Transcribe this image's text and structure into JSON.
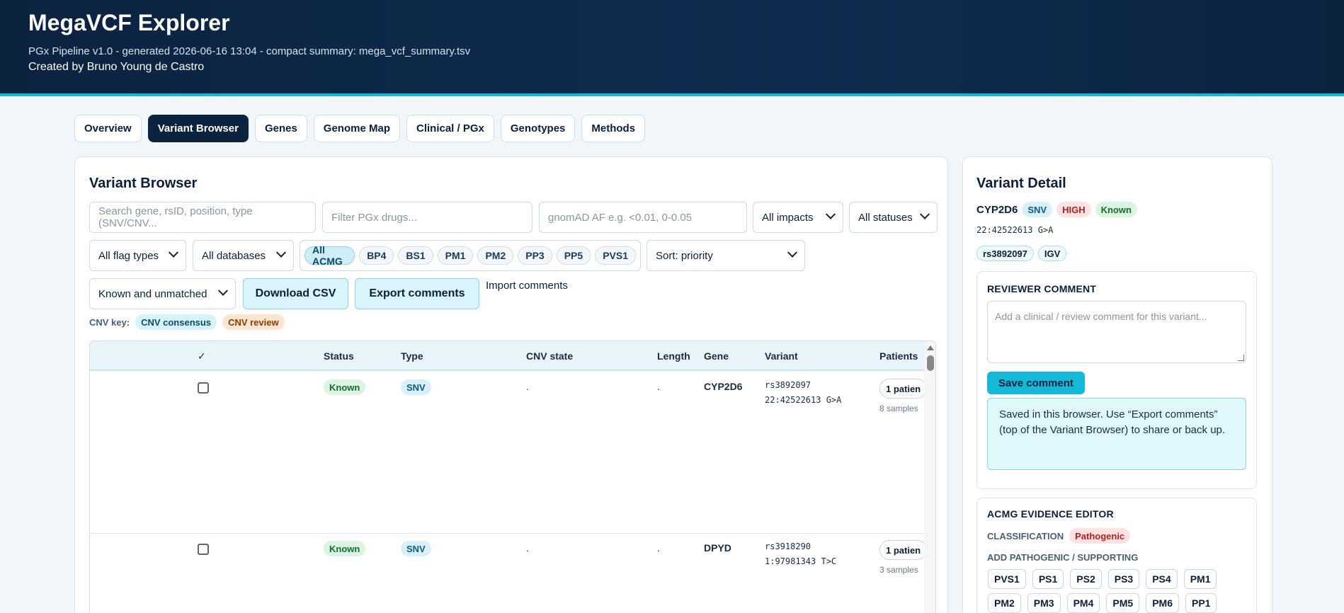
{
  "header": {
    "title": "MegaVCF Explorer",
    "subtitle": "PGx Pipeline v1.0 - generated 2026-06-16 13:04 - compact summary: mega_vcf_summary.tsv",
    "credit": "Created by Bruno Young de Castro"
  },
  "tabs": [
    "Overview",
    "Variant Browser",
    "Genes",
    "Genome Map",
    "Clinical / PGx",
    "Genotypes",
    "Methods"
  ],
  "browser": {
    "title": "Variant Browser",
    "search_placeholder": "Search gene, rsID, position, type (SNV/CNV...",
    "drug_placeholder": "Filter PGx drugs...",
    "af_placeholder": "gnomAD AF e.g. <0.01, 0-0.05",
    "impacts": "All impacts",
    "statuses": "All statuses",
    "flag_types": "All flag types",
    "databases": "All databases",
    "acmg_chips": [
      "All ACMG",
      "BP4",
      "BS1",
      "PM1",
      "PM2",
      "PP3",
      "PP5",
      "PVS1"
    ],
    "sort": "Sort: priority",
    "match": "Known and unmatched",
    "download_csv": "Download CSV",
    "export_comments": "Export comments",
    "import_comments": "Import comments",
    "cnv_key_label": "CNV key:",
    "cnv_consensus": "CNV consensus",
    "cnv_review": "CNV review",
    "columns": [
      "✓",
      "Status",
      "Type",
      "CNV state",
      "Length",
      "Gene",
      "Variant",
      "Patients"
    ],
    "rows": [
      {
        "status": "Known",
        "type": "SNV",
        "cnv_state": ".",
        "length": ".",
        "gene": "CYP2D6",
        "rsid": "rs3892097",
        "pos": "22:42522613 G>A",
        "patients": "1 patien",
        "samples": "8 samples"
      },
      {
        "status": "Known",
        "type": "SNV",
        "cnv_state": ".",
        "length": ".",
        "gene": "DPYD",
        "rsid": "rs3918290",
        "pos": "1:97981343 T>C",
        "patients": "1 patien",
        "samples": "3 samples"
      }
    ]
  },
  "detail": {
    "title": "Variant Detail",
    "gene": "CYP2D6",
    "type": "SNV",
    "impact": "HIGH",
    "status": "Known",
    "pos": "22:42522613 G>A",
    "links": [
      "rs3892097",
      "IGV"
    ],
    "comment_heading": "REVIEWER COMMENT",
    "comment_placeholder": "Add a clinical / review comment for this variant...",
    "save_label": "Save comment",
    "note": "Saved in this browser. Use “Export comments” (top of the Variant Browser) to share or back up.",
    "acmg_heading": "ACMG EVIDENCE EDITOR",
    "classification_label": "CLASSIFICATION",
    "classification": "Pathogenic",
    "add_label": "ADD PATHOGENIC / SUPPORTING",
    "criteria_row1": [
      "PVS1",
      "PS1",
      "PS2",
      "PS3",
      "PS4",
      "PM1"
    ],
    "criteria_row2": [
      "PM2",
      "PM3",
      "PM4",
      "PM5",
      "PM6",
      "PP1"
    ]
  }
}
